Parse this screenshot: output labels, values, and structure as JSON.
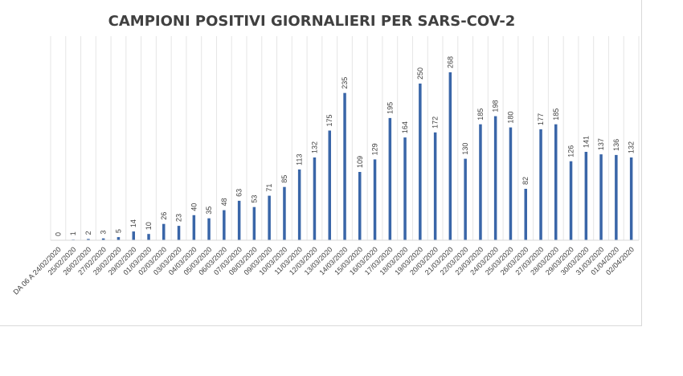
{
  "chart_data": {
    "type": "bar",
    "title": "CAMPIONI POSITIVI GIORNALIERI PER SARS-COV-2",
    "categories": [
      "DA 06 A 24/02/2020",
      "25/02/2020",
      "26/02/2020",
      "27/02/2020",
      "28/02/2020",
      "29/02/2020",
      "01/03/2020",
      "02/03/2020",
      "03/03/2020",
      "04/03/2020",
      "05/03/2020",
      "06/03/2020",
      "07/03/2020",
      "08/03/2020",
      "09/03/2020",
      "10/03/2020",
      "11/03/2020",
      "12/03/2020",
      "13/03/2020",
      "14/03/2020",
      "15/03/2020",
      "16/03/2020",
      "17/03/2020",
      "18/03/2020",
      "19/03/2020",
      "20/03/2020",
      "21/03/2020",
      "22/03/2020",
      "23/03/2020",
      "24/03/2020",
      "25/03/2020",
      "26/03/2020",
      "27/03/2020",
      "28/03/2020",
      "29/03/2020",
      "30/03/2020",
      "31/03/2020",
      "01/04/2020",
      "02/04/2020"
    ],
    "values": [
      0,
      1,
      2,
      3,
      5,
      14,
      10,
      26,
      23,
      40,
      35,
      48,
      63,
      53,
      71,
      85,
      113,
      132,
      175,
      235,
      109,
      129,
      195,
      164,
      250,
      172,
      268,
      130,
      185,
      198,
      180,
      82,
      177,
      185,
      126,
      141,
      137,
      136,
      132
    ],
    "ylim": [
      0,
      300
    ],
    "grid": "vertical",
    "legend": "none",
    "bar_color": "#3a66a8"
  }
}
